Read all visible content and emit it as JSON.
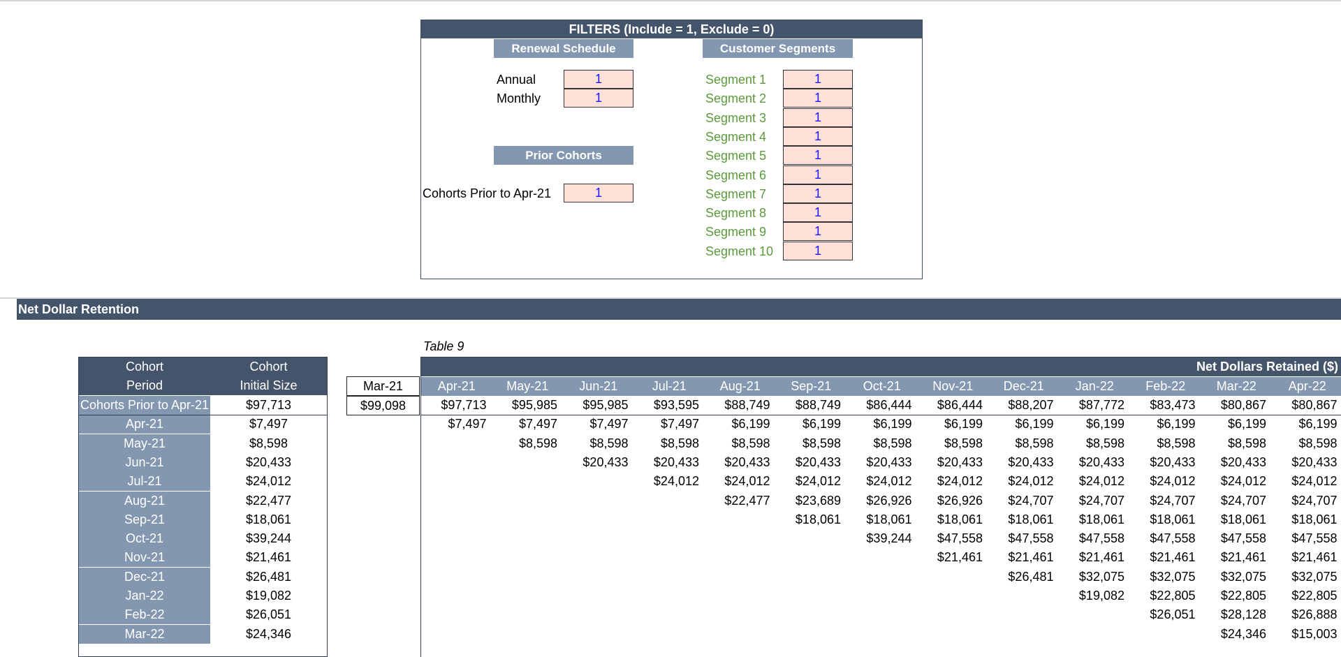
{
  "filters": {
    "title": "FILTERS (Include =  1, Exclude = 0)",
    "renewal": {
      "header": "Renewal Schedule",
      "items": [
        {
          "label": "Annual",
          "value": "1"
        },
        {
          "label": "Monthly",
          "value": "1"
        }
      ]
    },
    "prior": {
      "header": "Prior Cohorts",
      "label": "Cohorts Prior to Apr-21",
      "value": "1"
    },
    "segments": {
      "header": "Customer Segments",
      "items": [
        {
          "label": "Segment 1",
          "value": "1"
        },
        {
          "label": "Segment 2",
          "value": "1"
        },
        {
          "label": "Segment 3",
          "value": "1"
        },
        {
          "label": "Segment 4",
          "value": "1"
        },
        {
          "label": "Segment 5",
          "value": "1"
        },
        {
          "label": "Segment 6",
          "value": "1"
        },
        {
          "label": "Segment 7",
          "value": "1"
        },
        {
          "label": "Segment 8",
          "value": "1"
        },
        {
          "label": "Segment 9",
          "value": "1"
        },
        {
          "label": "Segment 10",
          "value": "1"
        }
      ]
    }
  },
  "ndr": {
    "section_title": "Net Dollar Retention",
    "table_caption": "Table 9",
    "left_headers": {
      "period_line1": "Cohort",
      "period_line2": "Period",
      "size_line1": "Cohort",
      "size_line2": "Initial Size"
    },
    "prior_column": {
      "header": "Mar-21",
      "value": "$99,098"
    },
    "grid_title": "Net Dollars Retained ($)",
    "months": [
      "Apr-21",
      "May-21",
      "Jun-21",
      "Jul-21",
      "Aug-21",
      "Sep-21",
      "Oct-21",
      "Nov-21",
      "Dec-21",
      "Jan-22",
      "Feb-22",
      "Mar-22",
      "Apr-22"
    ],
    "rows": [
      {
        "period": "Cohorts Prior to Apr-21",
        "size": "$97,713",
        "values": [
          "$97,713",
          "$95,985",
          "$95,985",
          "$93,595",
          "$88,749",
          "$88,749",
          "$86,444",
          "$86,444",
          "$88,207",
          "$87,772",
          "$83,473",
          "$80,867",
          "$80,867"
        ]
      },
      {
        "period": "Apr-21",
        "size": "$7,497",
        "values": [
          "$7,497",
          "$7,497",
          "$7,497",
          "$7,497",
          "$6,199",
          "$6,199",
          "$6,199",
          "$6,199",
          "$6,199",
          "$6,199",
          "$6,199",
          "$6,199",
          "$6,199"
        ]
      },
      {
        "period": "May-21",
        "size": "$8,598",
        "values": [
          "",
          "$8,598",
          "$8,598",
          "$8,598",
          "$8,598",
          "$8,598",
          "$8,598",
          "$8,598",
          "$8,598",
          "$8,598",
          "$8,598",
          "$8,598",
          "$8,598"
        ]
      },
      {
        "period": "Jun-21",
        "size": "$20,433",
        "values": [
          "",
          "",
          "$20,433",
          "$20,433",
          "$20,433",
          "$20,433",
          "$20,433",
          "$20,433",
          "$20,433",
          "$20,433",
          "$20,433",
          "$20,433",
          "$20,433"
        ]
      },
      {
        "period": "Jul-21",
        "size": "$24,012",
        "values": [
          "",
          "",
          "",
          "$24,012",
          "$24,012",
          "$24,012",
          "$24,012",
          "$24,012",
          "$24,012",
          "$24,012",
          "$24,012",
          "$24,012",
          "$24,012"
        ]
      },
      {
        "period": "Aug-21",
        "size": "$22,477",
        "values": [
          "",
          "",
          "",
          "",
          "$22,477",
          "$23,689",
          "$26,926",
          "$26,926",
          "$24,707",
          "$24,707",
          "$24,707",
          "$24,707",
          "$24,707"
        ]
      },
      {
        "period": "Sep-21",
        "size": "$18,061",
        "values": [
          "",
          "",
          "",
          "",
          "",
          "$18,061",
          "$18,061",
          "$18,061",
          "$18,061",
          "$18,061",
          "$18,061",
          "$18,061",
          "$18,061"
        ]
      },
      {
        "period": "Oct-21",
        "size": "$39,244",
        "values": [
          "",
          "",
          "",
          "",
          "",
          "",
          "$39,244",
          "$47,558",
          "$47,558",
          "$47,558",
          "$47,558",
          "$47,558",
          "$47,558"
        ]
      },
      {
        "period": "Nov-21",
        "size": "$21,461",
        "values": [
          "",
          "",
          "",
          "",
          "",
          "",
          "",
          "$21,461",
          "$21,461",
          "$21,461",
          "$21,461",
          "$21,461",
          "$21,461"
        ]
      },
      {
        "period": "Dec-21",
        "size": "$26,481",
        "values": [
          "",
          "",
          "",
          "",
          "",
          "",
          "",
          "",
          "$26,481",
          "$32,075",
          "$32,075",
          "$32,075",
          "$32,075"
        ]
      },
      {
        "period": "Jan-22",
        "size": "$19,082",
        "values": [
          "",
          "",
          "",
          "",
          "",
          "",
          "",
          "",
          "",
          "$19,082",
          "$22,805",
          "$22,805",
          "$22,805"
        ]
      },
      {
        "period": "Feb-22",
        "size": "$26,051",
        "values": [
          "",
          "",
          "",
          "",
          "",
          "",
          "",
          "",
          "",
          "",
          "$26,051",
          "$28,128",
          "$26,888"
        ]
      },
      {
        "period": "Mar-22",
        "size": "$24,346",
        "values": [
          "",
          "",
          "",
          "",
          "",
          "",
          "",
          "",
          "",
          "",
          "",
          "$24,346",
          "$15,003"
        ]
      }
    ]
  }
}
